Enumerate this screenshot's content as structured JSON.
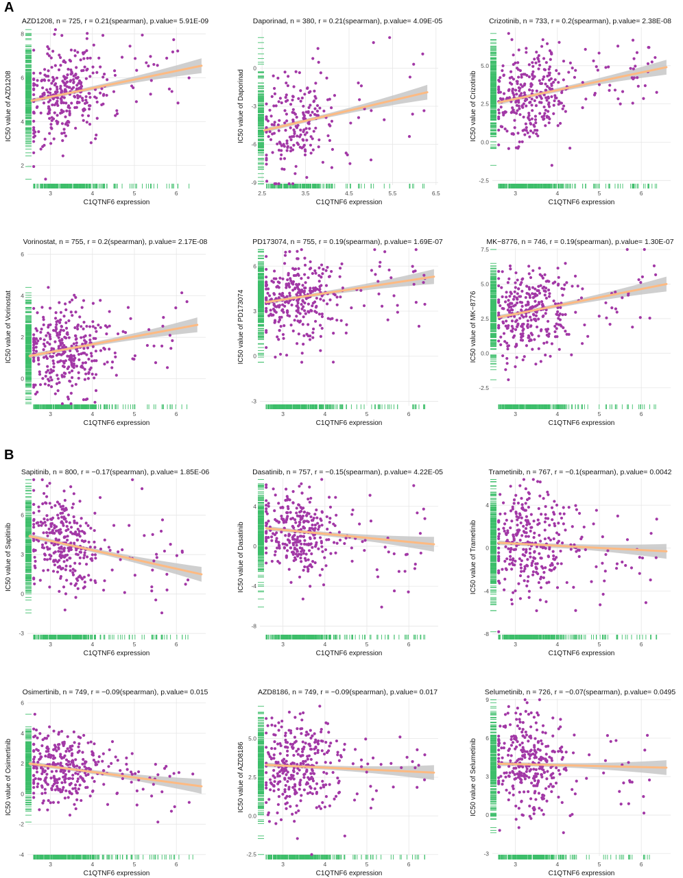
{
  "panel_labels": {
    "a": "A",
    "b": "B"
  },
  "colors": {
    "point": "#A238A6",
    "rug": "#3DBE6A",
    "line": "#FDBA82",
    "band": "#BFBFBF",
    "grid": "#E6E6E6"
  },
  "chart_data": [
    {
      "type": "scatter",
      "title": "AZD1208, n = 725, r = 0.21(spearman), p.value= 5.91E-09",
      "xlabel": "C1QTNF6 expression",
      "ylabel": "IC50 value of AZD1208",
      "xlim": [
        2.45,
        6.7
      ],
      "ylim": [
        1.1,
        8.3
      ],
      "xticks": [
        "3",
        "4",
        "5",
        "6"
      ],
      "xtick_values": [
        3,
        4,
        5,
        6
      ],
      "yticks": [
        "2",
        "4",
        "6",
        "8"
      ],
      "ytick_values": [
        2,
        4,
        6,
        8
      ],
      "fit": {
        "x0": 2.55,
        "y0": 4.95,
        "x1": 6.6,
        "y1": 6.55
      },
      "n_points": 340,
      "x_center": 3.3,
      "y_center": 5.3,
      "x_spread": 0.45,
      "y_spread": 1.1
    },
    {
      "type": "scatter",
      "title": "Daporinad, n = 380, r = 0.21(spearman), p.value= 4.09E-05",
      "xlabel": "C1QTNF6 expression",
      "ylabel": "IC50 value of Daporinad",
      "xlim": [
        2.45,
        6.55
      ],
      "ylim": [
        -9.2,
        3.2
      ],
      "xticks": [
        "2.5",
        "3.5",
        "4.5",
        "5.5",
        "6.5"
      ],
      "xtick_values": [
        2.5,
        3.5,
        4.5,
        5.5,
        6.5
      ],
      "yticks": [
        "-9",
        "-6",
        "-3",
        "0"
      ],
      "ytick_values": [
        -9,
        -6,
        -3,
        0
      ],
      "fit": {
        "x0": 2.55,
        "y0": -4.9,
        "x1": 6.3,
        "y1": -1.9
      },
      "n_points": 220,
      "x_center": 3.25,
      "y_center": -3.8,
      "x_spread": 0.45,
      "y_spread": 2.0
    },
    {
      "type": "scatter",
      "title": "Crizotinib, n = 733, r = 0.2(spearman), p.value= 2.38E-08",
      "xlabel": "C1QTNF6 expression",
      "ylabel": "IC50 value of Crizotinib",
      "xlim": [
        2.45,
        6.7
      ],
      "ylim": [
        -2.8,
        7.5
      ],
      "xticks": [
        "3",
        "4",
        "5",
        "6"
      ],
      "xtick_values": [
        3,
        4,
        5,
        6
      ],
      "yticks": [
        "-2.5",
        "0.0",
        "2.5",
        "5.0"
      ],
      "ytick_values": [
        -2.5,
        0,
        2.5,
        5
      ],
      "fit": {
        "x0": 2.6,
        "y0": 2.6,
        "x1": 6.6,
        "y1": 4.9
      },
      "n_points": 340,
      "x_center": 3.3,
      "y_center": 3.0,
      "x_spread": 0.45,
      "y_spread": 1.5
    },
    {
      "type": "scatter",
      "title": "Vorinostat, n = 755, r = 0.2(spearman), p.value= 2.17E-08",
      "xlabel": "C1QTNF6 expression",
      "ylabel": "IC50 value of Vorinostat",
      "xlim": [
        2.45,
        6.7
      ],
      "ylim": [
        -1.3,
        6.3
      ],
      "xticks": [
        "3",
        "4",
        "5",
        "6"
      ],
      "xtick_values": [
        3,
        4,
        5,
        6
      ],
      "yticks": [
        "0",
        "2",
        "4",
        "6"
      ],
      "ytick_values": [
        0,
        2,
        4,
        6
      ],
      "fit": {
        "x0": 2.5,
        "y0": 1.1,
        "x1": 6.5,
        "y1": 2.6
      },
      "n_points": 340,
      "x_center": 3.3,
      "y_center": 1.4,
      "x_spread": 0.45,
      "y_spread": 1.1
    },
    {
      "type": "scatter",
      "title": "PD173074, n = 755, r = 0.19(spearman), p.value= 1.69E-07",
      "xlabel": "C1QTNF6 expression",
      "ylabel": "IC50 value of PD173074",
      "xlim": [
        2.45,
        6.7
      ],
      "ylim": [
        -3.3,
        7.2
      ],
      "xticks": [
        "3",
        "4",
        "5",
        "6"
      ],
      "xtick_values": [
        3,
        4,
        5,
        6
      ],
      "yticks": [
        "-3",
        "0",
        "3",
        "6"
      ],
      "ytick_values": [
        -3,
        0,
        3,
        6
      ],
      "fit": {
        "x0": 2.6,
        "y0": 3.6,
        "x1": 6.6,
        "y1": 5.3
      },
      "n_points": 340,
      "x_center": 3.3,
      "y_center": 3.9,
      "x_spread": 0.45,
      "y_spread": 1.4
    },
    {
      "type": "scatter",
      "title": "MK−8776, n = 746, r = 0.19(spearman), p.value= 1.30E-07",
      "xlabel": "C1QTNF6 expression",
      "ylabel": "IC50 value of MK−8776",
      "xlim": [
        2.45,
        6.7
      ],
      "ylim": [
        -3.8,
        7.6
      ],
      "xticks": [
        "3",
        "4",
        "5",
        "6"
      ],
      "xtick_values": [
        3,
        4,
        5,
        6
      ],
      "yticks": [
        "-2.5",
        "0.0",
        "2.5",
        "5.0",
        "7.5"
      ],
      "ytick_values": [
        -2.5,
        0,
        2.5,
        5,
        7.5
      ],
      "fit": {
        "x0": 2.6,
        "y0": 2.6,
        "x1": 6.6,
        "y1": 5.0
      },
      "n_points": 340,
      "x_center": 3.3,
      "y_center": 3.2,
      "x_spread": 0.45,
      "y_spread": 1.6
    },
    {
      "type": "scatter",
      "title": "Sapitinib, n = 800, r = −0.17(spearman), p.value= 1.85E-06",
      "xlabel": "C1QTNF6 expression",
      "ylabel": "IC50 value of Sapitinib",
      "xlim": [
        2.45,
        6.7
      ],
      "ylim": [
        -3.2,
        8.8
      ],
      "xticks": [
        "3",
        "4",
        "5",
        "6"
      ],
      "xtick_values": [
        3,
        4,
        5,
        6
      ],
      "yticks": [
        "-3",
        "0",
        "3",
        "6"
      ],
      "ytick_values": [
        -3,
        0,
        3,
        6
      ],
      "fit": {
        "x0": 2.5,
        "y0": 4.4,
        "x1": 6.6,
        "y1": 1.5
      },
      "n_points": 340,
      "x_center": 3.3,
      "y_center": 3.8,
      "x_spread": 0.45,
      "y_spread": 1.8
    },
    {
      "type": "scatter",
      "title": "Dasatinib, n = 757, r = −0.15(spearman), p.value= 4.22E-05",
      "xlabel": "C1QTNF6 expression",
      "ylabel": "IC50 value of Dasatinib",
      "xlim": [
        2.45,
        6.7
      ],
      "ylim": [
        -9.0,
        6.8
      ],
      "xticks": [
        "3",
        "4",
        "5",
        "6"
      ],
      "xtick_values": [
        3,
        4,
        5,
        6
      ],
      "yticks": [
        "-8",
        "-4",
        "0",
        "4"
      ],
      "ytick_values": [
        -8,
        -4,
        0,
        4
      ],
      "fit": {
        "x0": 2.6,
        "y0": 1.8,
        "x1": 6.6,
        "y1": 0.2
      },
      "n_points": 340,
      "x_center": 3.3,
      "y_center": 1.5,
      "x_spread": 0.45,
      "y_spread": 2.3
    },
    {
      "type": "scatter",
      "title": "Trametinib, n = 767, r = −0.1(spearman), p.value= 0.0042",
      "xlabel": "C1QTNF6 expression",
      "ylabel": "IC50 value of Trametinib",
      "xlim": [
        2.45,
        6.7
      ],
      "ylim": [
        -8.2,
        6.5
      ],
      "xticks": [
        "3",
        "4",
        "5",
        "6"
      ],
      "xtick_values": [
        3,
        4,
        5,
        6
      ],
      "yticks": [
        "-8",
        "-4",
        "0",
        "4"
      ],
      "ytick_values": [
        -8,
        -4,
        0,
        4
      ],
      "fit": {
        "x0": 2.6,
        "y0": 0.5,
        "x1": 6.6,
        "y1": -0.3
      },
      "n_points": 340,
      "x_center": 3.3,
      "y_center": 0.5,
      "x_spread": 0.45,
      "y_spread": 2.5
    },
    {
      "type": "scatter",
      "title": "Osimertinib, n = 749, r = −0.09(spearman), p.value= 0.015",
      "xlabel": "C1QTNF6 expression",
      "ylabel": "IC50 value of Osimertinib",
      "xlim": [
        2.45,
        6.7
      ],
      "ylim": [
        -4.1,
        6.3
      ],
      "xticks": [
        "3",
        "4",
        "5",
        "6"
      ],
      "xtick_values": [
        3,
        4,
        5,
        6
      ],
      "yticks": [
        "-4",
        "-2",
        "0",
        "2",
        "4",
        "6"
      ],
      "ytick_values": [
        -4,
        -2,
        0,
        2,
        4,
        6
      ],
      "fit": {
        "x0": 2.5,
        "y0": 2.0,
        "x1": 6.6,
        "y1": 0.5
      },
      "n_points": 340,
      "x_center": 3.3,
      "y_center": 1.6,
      "x_spread": 0.45,
      "y_spread": 1.2
    },
    {
      "type": "scatter",
      "title": "AZD8186, n = 749, r = −0.09(spearman), p.value= 0.017",
      "xlabel": "C1QTNF6 expression",
      "ylabel": "IC50 value of AZD8186",
      "xlim": [
        2.45,
        6.7
      ],
      "ylim": [
        -2.6,
        7.6
      ],
      "xticks": [
        "3",
        "4",
        "5",
        "6"
      ],
      "xtick_values": [
        3,
        4,
        5,
        6
      ],
      "yticks": [
        "-2.5",
        "0.0",
        "2.5",
        "5.0"
      ],
      "ytick_values": [
        -2.5,
        0,
        2.5,
        5
      ],
      "fit": {
        "x0": 2.6,
        "y0": 3.3,
        "x1": 6.6,
        "y1": 2.8
      },
      "n_points": 340,
      "x_center": 3.3,
      "y_center": 3.3,
      "x_spread": 0.45,
      "y_spread": 1.6
    },
    {
      "type": "scatter",
      "title": "Selumetinib, n = 726, r = −0.07(spearman), p.value= 0.0495",
      "xlabel": "C1QTNF6 expression",
      "ylabel": "IC50 value of Selumetinib",
      "xlim": [
        2.45,
        6.7
      ],
      "ylim": [
        -3.2,
        9.1
      ],
      "xticks": [
        "3",
        "4",
        "5",
        "6"
      ],
      "xtick_values": [
        3,
        4,
        5,
        6
      ],
      "yticks": [
        "-3",
        "0",
        "3",
        "6",
        "9"
      ],
      "ytick_values": [
        -3,
        0,
        3,
        6,
        9
      ],
      "fit": {
        "x0": 2.6,
        "y0": 4.0,
        "x1": 6.6,
        "y1": 3.7
      },
      "n_points": 340,
      "x_center": 3.3,
      "y_center": 3.8,
      "x_spread": 0.45,
      "y_spread": 2.0
    }
  ]
}
